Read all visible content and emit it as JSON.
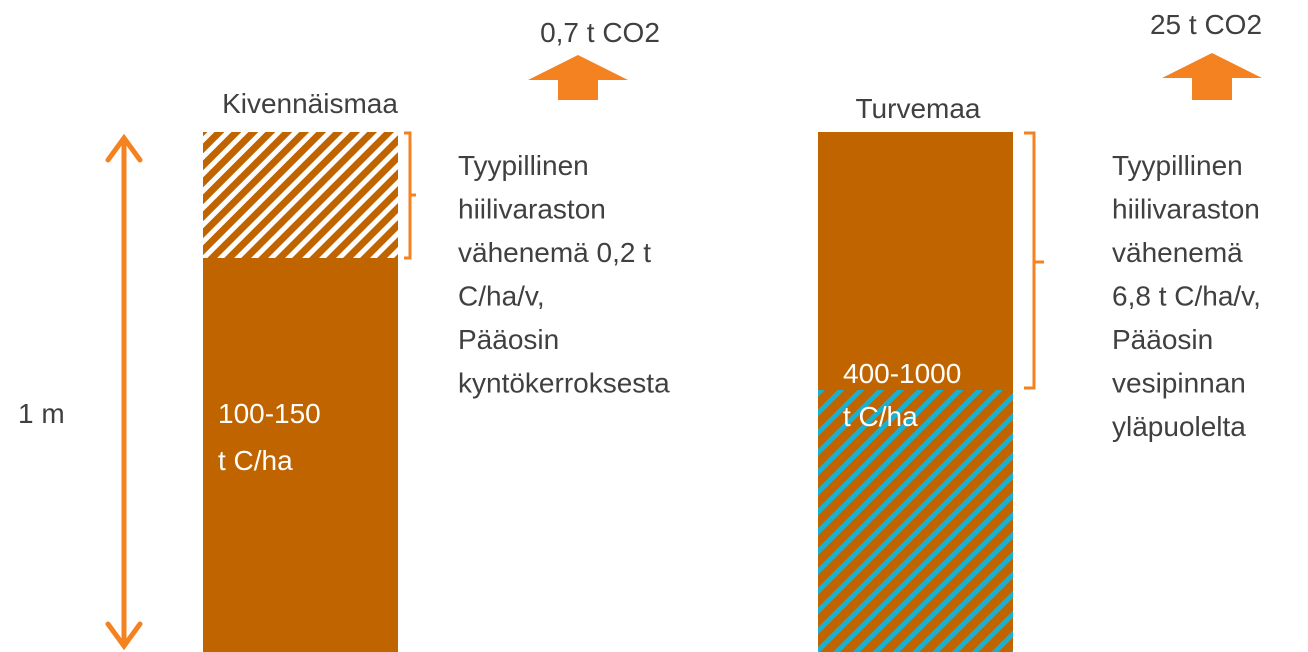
{
  "left": {
    "emission": "0,7 t CO2",
    "title": "Kivennäismaa",
    "stock": [
      "100-150",
      "t C/ha"
    ],
    "note": [
      "Tyypillinen",
      "hiilivaraston",
      "vähenemä 0,2 t",
      "C/ha/v,",
      "Pääosin",
      "kyntökerroksesta"
    ]
  },
  "right": {
    "emission": "25 t CO2",
    "title": "Turvemaa",
    "stock": [
      "400-1000",
      "t C/ha"
    ],
    "note": [
      "Tyypillinen",
      "hiilivaraston",
      "vähenemä",
      "6,8 t C/ha/v,",
      "Pääosin",
      "vesipinnan",
      "yläpuolelta"
    ]
  },
  "depth": "1 m"
}
